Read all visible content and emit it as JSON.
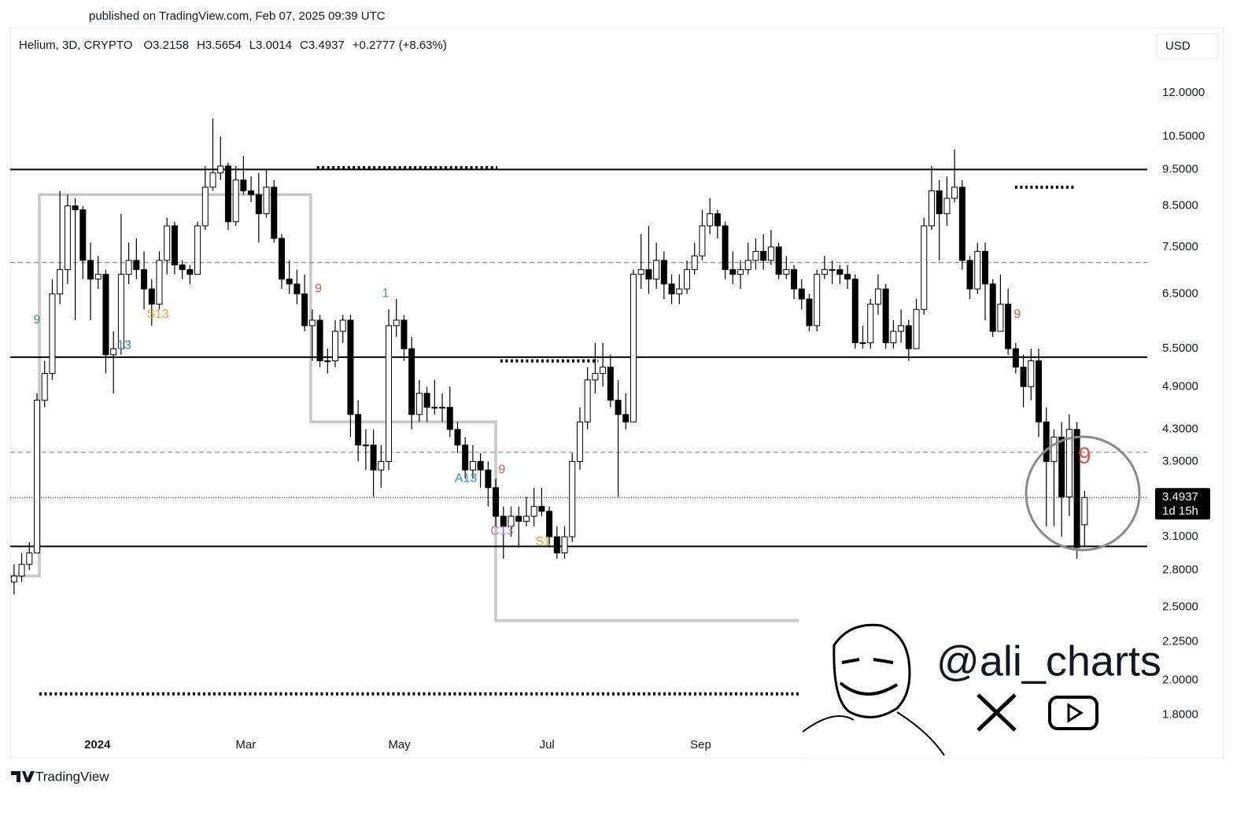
{
  "published": "published on TradingView.com, Feb 07, 2025 09:39 UTC",
  "footer_brand": "TradingView",
  "watermark": "@ali_charts",
  "chart_data": {
    "type": "candlestick",
    "symbol": "Helium, 3D, CRYPTO",
    "ohlc_labels": [
      "O",
      "H",
      "L",
      "C"
    ],
    "change": "+0.2777 (+8.63%)",
    "currency": "USD",
    "countdown": "1d 15h",
    "log_scale": true,
    "up_color": "#ffffff",
    "down_color": "#000000",
    "ylim": [
      1.58,
      14.47
    ],
    "yticks": [
      {
        "value": 12,
        "label": "12.0000"
      },
      {
        "value": 10.5,
        "label": "10.5000"
      },
      {
        "value": 9.5,
        "label": "9.5000"
      },
      {
        "value": 8.5,
        "label": "8.5000"
      },
      {
        "value": 7.5,
        "label": "7.5000"
      },
      {
        "value": 6.5,
        "label": "6.5000"
      },
      {
        "value": 5.5,
        "label": "5.5000"
      },
      {
        "value": 4.9,
        "label": "4.9000"
      },
      {
        "value": 4.3,
        "label": "4.3000"
      },
      {
        "value": 3.9,
        "label": "3.9000"
      },
      {
        "value": 3.1,
        "label": "3.1000"
      },
      {
        "value": 2.8,
        "label": "2.8000"
      },
      {
        "value": 2.5,
        "label": "2.5000"
      },
      {
        "value": 2.25,
        "label": "2.2500"
      },
      {
        "value": 2,
        "label": "2.0000"
      },
      {
        "value": 1.8,
        "label": "1.8000"
      }
    ],
    "xlim": [
      -0.5,
      148.2
    ],
    "xticks": [
      {
        "value": 10.9,
        "label": "2024"
      },
      {
        "value": 30.3,
        "label": "Mar"
      },
      {
        "value": 50.4,
        "label": "May"
      },
      {
        "value": 69.7,
        "label": "Jul"
      },
      {
        "value": 89.8,
        "label": "Sep"
      }
    ],
    "ohlc": [
      [
        2.7,
        2.85,
        2.6,
        2.75
      ],
      [
        2.75,
        2.95,
        2.7,
        2.85
      ],
      [
        2.85,
        3.05,
        2.8,
        2.95
      ],
      [
        2.95,
        4.8,
        2.95,
        4.7
      ],
      [
        4.7,
        5.3,
        4.6,
        5.1
      ],
      [
        5.1,
        6.8,
        5.0,
        6.5
      ],
      [
        6.5,
        8.9,
        6.3,
        7.0
      ],
      [
        7.0,
        8.8,
        6.7,
        8.5
      ],
      [
        8.5,
        8.7,
        6.0,
        8.4
      ],
      [
        8.4,
        8.5,
        6.8,
        7.2
      ],
      [
        7.2,
        7.6,
        6.0,
        6.8
      ],
      [
        6.8,
        7.3,
        6.6,
        6.9
      ],
      [
        6.9,
        7.0,
        5.1,
        5.4
      ],
      [
        5.4,
        5.8,
        4.8,
        5.5
      ],
      [
        5.5,
        8.3,
        5.4,
        6.9
      ],
      [
        6.9,
        7.6,
        6.7,
        7.2
      ],
      [
        7.2,
        7.7,
        6.8,
        7.0
      ],
      [
        7.0,
        7.4,
        6.2,
        6.6
      ],
      [
        6.6,
        6.8,
        5.9,
        6.3
      ],
      [
        6.3,
        7.4,
        6.2,
        7.2
      ],
      [
        7.2,
        8.2,
        6.9,
        8.0
      ],
      [
        8.0,
        8.1,
        6.9,
        7.1
      ],
      [
        7.1,
        7.2,
        6.8,
        7.0
      ],
      [
        7.0,
        7.1,
        6.7,
        6.9
      ],
      [
        6.9,
        8.1,
        6.9,
        8.0
      ],
      [
        8.0,
        9.6,
        7.9,
        9.0
      ],
      [
        9.0,
        11.1,
        8.9,
        9.4
      ],
      [
        9.4,
        10.5,
        9.2,
        9.6
      ],
      [
        9.6,
        9.7,
        7.9,
        8.1
      ],
      [
        8.1,
        9.6,
        8.0,
        9.2
      ],
      [
        9.2,
        9.9,
        8.8,
        8.9
      ],
      [
        8.9,
        9.3,
        8.6,
        8.8
      ],
      [
        8.8,
        9.4,
        7.6,
        8.3
      ],
      [
        8.3,
        9.5,
        8.2,
        9.0
      ],
      [
        9.0,
        9.2,
        7.6,
        7.7
      ],
      [
        7.7,
        7.8,
        6.6,
        6.8
      ],
      [
        6.8,
        7.2,
        6.5,
        6.7
      ],
      [
        6.7,
        7.0,
        6.3,
        6.5
      ],
      [
        6.5,
        6.9,
        5.8,
        5.9
      ],
      [
        5.9,
        6.2,
        5.3,
        6.0
      ],
      [
        6.0,
        6.1,
        5.2,
        5.3
      ],
      [
        5.3,
        5.5,
        5.1,
        5.3
      ],
      [
        5.3,
        6.0,
        5.2,
        5.8
      ],
      [
        5.8,
        6.1,
        5.6,
        6.0
      ],
      [
        6.0,
        6.1,
        4.2,
        4.5
      ],
      [
        4.5,
        4.7,
        3.9,
        4.1
      ],
      [
        4.1,
        4.3,
        3.8,
        4.1
      ],
      [
        4.1,
        4.3,
        3.5,
        3.8
      ],
      [
        3.8,
        4.1,
        3.6,
        3.9
      ],
      [
        3.9,
        6.2,
        3.8,
        5.9
      ],
      [
        5.9,
        6.4,
        5.7,
        6.0
      ],
      [
        6.0,
        6.1,
        5.3,
        5.5
      ],
      [
        5.5,
        5.7,
        4.3,
        4.5
      ],
      [
        4.5,
        5.0,
        4.4,
        4.8
      ],
      [
        4.8,
        4.9,
        4.4,
        4.6
      ],
      [
        4.6,
        5.0,
        4.5,
        4.6
      ],
      [
        4.6,
        4.8,
        4.4,
        4.6
      ],
      [
        4.6,
        4.9,
        4.2,
        4.3
      ],
      [
        4.3,
        4.4,
        4.0,
        4.1
      ],
      [
        4.1,
        4.2,
        3.7,
        3.8
      ],
      [
        3.8,
        4.1,
        3.7,
        3.9
      ],
      [
        3.9,
        4.0,
        3.6,
        3.8
      ],
      [
        3.8,
        3.9,
        3.4,
        3.6
      ],
      [
        3.6,
        3.7,
        3.2,
        3.3
      ],
      [
        3.3,
        3.4,
        2.9,
        3.2
      ],
      [
        3.2,
        3.4,
        3.1,
        3.3
      ],
      [
        3.3,
        3.4,
        3.0,
        3.25
      ],
      [
        3.25,
        3.5,
        3.2,
        3.3
      ],
      [
        3.3,
        3.6,
        3.2,
        3.4
      ],
      [
        3.4,
        3.6,
        3.3,
        3.35
      ],
      [
        3.35,
        3.4,
        3.0,
        3.1
      ],
      [
        3.1,
        3.2,
        2.9,
        2.95
      ],
      [
        2.95,
        3.2,
        2.9,
        3.1
      ],
      [
        3.1,
        4.0,
        3.05,
        3.9
      ],
      [
        3.9,
        4.6,
        3.8,
        4.4
      ],
      [
        4.4,
        5.2,
        4.3,
        5.0
      ],
      [
        5.0,
        5.6,
        4.8,
        5.1
      ],
      [
        5.1,
        5.6,
        4.9,
        5.2
      ],
      [
        5.2,
        5.4,
        4.6,
        4.7
      ],
      [
        4.7,
        5.0,
        3.5,
        4.5
      ],
      [
        4.5,
        4.8,
        4.3,
        4.4
      ],
      [
        4.4,
        7.0,
        4.4,
        6.9
      ],
      [
        6.9,
        7.8,
        6.6,
        7.0
      ],
      [
        7.0,
        8.0,
        6.5,
        6.8
      ],
      [
        6.8,
        7.6,
        6.6,
        7.2
      ],
      [
        7.2,
        7.4,
        6.4,
        6.7
      ],
      [
        6.7,
        6.9,
        6.3,
        6.5
      ],
      [
        6.5,
        6.9,
        6.3,
        6.6
      ],
      [
        6.6,
        7.2,
        6.5,
        7.0
      ],
      [
        7.0,
        7.6,
        6.9,
        7.3
      ],
      [
        7.3,
        8.4,
        7.2,
        8.0
      ],
      [
        8.0,
        8.7,
        7.8,
        8.3
      ],
      [
        8.3,
        8.4,
        7.7,
        8.0
      ],
      [
        8.0,
        8.1,
        6.8,
        7.0
      ],
      [
        7.0,
        7.4,
        6.7,
        6.9
      ],
      [
        6.9,
        7.2,
        6.6,
        7.0
      ],
      [
        7.0,
        7.6,
        6.9,
        7.2
      ],
      [
        7.2,
        7.7,
        7.0,
        7.4
      ],
      [
        7.4,
        7.8,
        7.0,
        7.2
      ],
      [
        7.2,
        7.9,
        7.1,
        7.5
      ],
      [
        7.5,
        7.6,
        6.8,
        6.9
      ],
      [
        6.9,
        7.3,
        6.8,
        7.0
      ],
      [
        7.0,
        7.1,
        6.4,
        6.6
      ],
      [
        6.6,
        6.8,
        6.2,
        6.4
      ],
      [
        6.4,
        6.5,
        5.8,
        5.9
      ],
      [
        5.9,
        7.0,
        5.8,
        6.9
      ],
      [
        6.9,
        7.3,
        6.8,
        7.0
      ],
      [
        7.0,
        7.2,
        6.7,
        7.0
      ],
      [
        7.0,
        7.1,
        6.7,
        6.9
      ],
      [
        6.9,
        7.1,
        6.6,
        6.8
      ],
      [
        6.8,
        6.9,
        5.5,
        5.6
      ],
      [
        5.6,
        5.9,
        5.5,
        5.6
      ],
      [
        5.6,
        6.4,
        5.5,
        6.3
      ],
      [
        6.3,
        6.9,
        6.1,
        6.6
      ],
      [
        6.6,
        6.7,
        5.5,
        5.6
      ],
      [
        5.6,
        6.0,
        5.5,
        5.8
      ],
      [
        5.8,
        6.2,
        5.6,
        5.9
      ],
      [
        5.9,
        6.0,
        5.3,
        5.5
      ],
      [
        5.5,
        6.4,
        5.5,
        6.2
      ],
      [
        6.2,
        8.2,
        6.1,
        8.0
      ],
      [
        8.0,
        9.6,
        7.9,
        8.9
      ],
      [
        8.9,
        9.2,
        7.2,
        8.3
      ],
      [
        8.3,
        9.3,
        8.0,
        8.7
      ],
      [
        8.7,
        10.1,
        8.6,
        9.0
      ],
      [
        9.0,
        9.2,
        7.0,
        7.2
      ],
      [
        7.2,
        7.3,
        6.4,
        6.6
      ],
      [
        6.6,
        7.6,
        6.5,
        7.4
      ],
      [
        7.4,
        7.6,
        6.0,
        6.7
      ],
      [
        6.7,
        6.8,
        5.7,
        5.8
      ],
      [
        5.8,
        6.9,
        5.8,
        6.3
      ],
      [
        6.3,
        6.6,
        5.4,
        5.5
      ],
      [
        5.5,
        5.6,
        5.1,
        5.2
      ],
      [
        5.2,
        5.4,
        4.6,
        4.9
      ],
      [
        4.9,
        5.5,
        4.7,
        5.3
      ],
      [
        5.3,
        5.5,
        4.2,
        4.4
      ],
      [
        4.4,
        4.6,
        3.2,
        3.9
      ],
      [
        3.9,
        4.3,
        3.2,
        4.2
      ],
      [
        4.2,
        4.4,
        3.1,
        3.5
      ],
      [
        3.5,
        4.5,
        3.3,
        4.3
      ],
      [
        4.3,
        4.4,
        2.9,
        3.0
      ],
      [
        3.2158,
        3.5654,
        3.0014,
        3.4937
      ]
    ],
    "hlines": [
      {
        "value": 9.5,
        "style": "solid"
      },
      {
        "value": 5.36,
        "style": "solid"
      },
      {
        "value": 3.01,
        "style": "solid"
      },
      {
        "value": 7.15,
        "style": "dashed"
      },
      {
        "value": 4.01,
        "style": "dashed"
      }
    ],
    "dotted_levels": [
      {
        "value": 9.55,
        "from": 39.6,
        "to": 63.2
      },
      {
        "value": 5.3,
        "from": 63.6,
        "to": 76.4
      },
      {
        "value": 9.0,
        "from": 130.9,
        "to": 138.9
      },
      {
        "value": 1.92,
        "from": 3.3,
        "to": 102.6
      }
    ],
    "step_line": {
      "color": "#c8c8c8",
      "x": [
        -0.5,
        3.3,
        3.3,
        38.8,
        38.8,
        63.0,
        63.0,
        102.6
      ],
      "y": [
        2.75,
        2.75,
        8.8,
        8.8,
        4.4,
        4.4,
        2.4,
        2.4
      ]
    },
    "annotations": [
      {
        "text": "9",
        "x": 3,
        "y": 6.0,
        "color": "#3a9d5d"
      },
      {
        "text": "13",
        "x": 14.4,
        "y": 5.55,
        "color": "#2e8bd8"
      },
      {
        "text": "S13",
        "x": 18.8,
        "y": 6.1,
        "color": "#f0a030"
      },
      {
        "text": "9",
        "x": 39.8,
        "y": 6.6,
        "color": "#e0584a"
      },
      {
        "text": "1",
        "x": 48.6,
        "y": 6.5,
        "color": "#3a9d5d"
      },
      {
        "text": "A13",
        "x": 59.1,
        "y": 3.7,
        "color": "#2e8bd8"
      },
      {
        "text": "9",
        "x": 63.8,
        "y": 3.8,
        "color": "#e0584a"
      },
      {
        "text": "C13",
        "x": 63.8,
        "y": 3.15,
        "color": "#b070d0"
      },
      {
        "text": "S1",
        "x": 69.2,
        "y": 3.05,
        "color": "#f0a030"
      },
      {
        "text": "9",
        "x": 131.2,
        "y": 6.1,
        "color": "#e0584a"
      },
      {
        "text": "9",
        "x": 140,
        "y": 3.95,
        "color": "#e0584a"
      }
    ]
  }
}
